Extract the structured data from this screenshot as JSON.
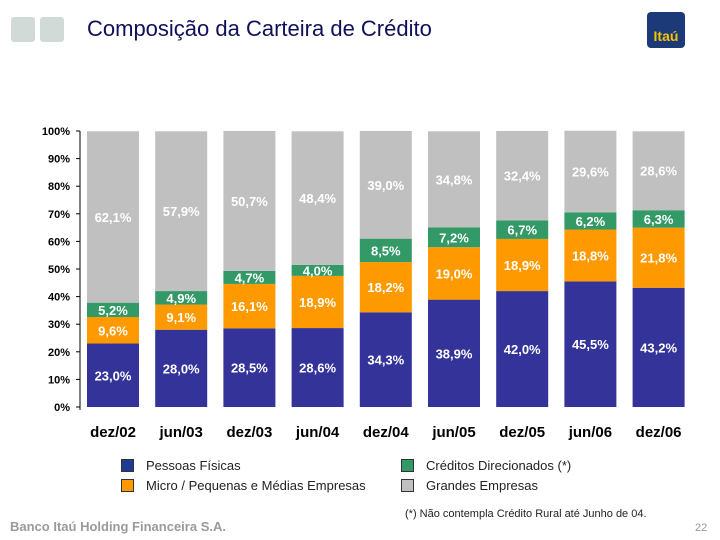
{
  "header": {
    "title": "Composição da Carteira de Crédito",
    "logo_text": "Itaú"
  },
  "chart_data": {
    "type": "bar",
    "stacked": true,
    "categories": [
      "dez/02",
      "jun/03",
      "dez/03",
      "jun/04",
      "dez/04",
      "jun/05",
      "dez/05",
      "jun/06",
      "dez/06"
    ],
    "series": [
      {
        "name": "Pessoas Físicas",
        "color": "#333399",
        "values": [
          23.0,
          28.0,
          28.5,
          28.6,
          34.3,
          38.9,
          42.0,
          45.5,
          43.2
        ],
        "labels": [
          "23,0%",
          "28,0%",
          "28,5%",
          "28,6%",
          "34,3%",
          "38,9%",
          "42,0%",
          "45,5%",
          "43,2%"
        ]
      },
      {
        "name": "Micro / Pequenas e Médias Empresas",
        "color": "#ff9900",
        "values": [
          9.6,
          9.1,
          16.1,
          18.9,
          18.2,
          19.0,
          18.9,
          18.8,
          21.8
        ],
        "labels": [
          "9,6%",
          "9,1%",
          "16,1%",
          "18,9%",
          "18,2%",
          "19,0%",
          "18,9%",
          "18,8%",
          "21,8%"
        ]
      },
      {
        "name": "Créditos Direcionados (*)",
        "color": "#339966",
        "values": [
          5.2,
          4.9,
          4.7,
          4.0,
          8.5,
          7.2,
          6.7,
          6.2,
          6.3
        ],
        "labels": [
          "5,2%",
          "4,9%",
          "4,7%",
          "4,0%",
          "8,5%",
          "7,2%",
          "6,7%",
          "6,2%",
          "6,3%"
        ]
      },
      {
        "name": "Grandes Empresas",
        "color": "#c0c0c0",
        "values": [
          62.1,
          57.9,
          50.7,
          48.4,
          39.0,
          34.8,
          32.4,
          29.6,
          28.6
        ],
        "labels": [
          "62,1%",
          "57,9%",
          "50,7%",
          "48,4%",
          "39,0%",
          "34,8%",
          "32,4%",
          "29,6%",
          "28,6%"
        ]
      }
    ],
    "yticks": [
      "0%",
      "10%",
      "20%",
      "30%",
      "40%",
      "50%",
      "60%",
      "70%",
      "80%",
      "90%",
      "100%"
    ],
    "ylim": [
      0,
      100
    ],
    "grid": false,
    "legend_position": "bottom"
  },
  "note": "(*) Não contempla Crédito Rural até Junho de 04.",
  "footer": {
    "company": "Banco Itaú Holding Financeira S.A.",
    "page_number": "22"
  }
}
